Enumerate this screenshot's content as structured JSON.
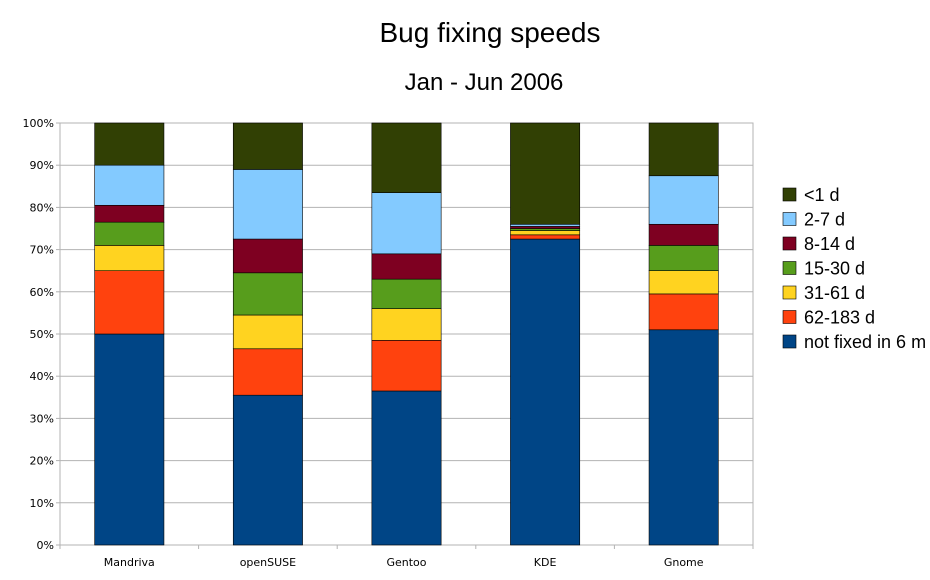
{
  "chart_data": {
    "type": "bar",
    "stacked": true,
    "title": "Bug fixing speeds",
    "subtitle": "Jan - Jun 2006",
    "categories": [
      "Mandriva",
      "openSUSE",
      "Gentoo",
      "KDE",
      "Gnome"
    ],
    "y_ticks": [
      "0%",
      "10%",
      "20%",
      "30%",
      "40%",
      "50%",
      "60%",
      "70%",
      "80%",
      "90%",
      "100%"
    ],
    "ylim": [
      0,
      100
    ],
    "grid": "horizontal",
    "legend_position": "right",
    "series": [
      {
        "name": "not fixed in 6 m",
        "color": "#004586",
        "values": [
          50.0,
          35.5,
          36.5,
          72.5,
          51.0
        ]
      },
      {
        "name": "62-183 d",
        "color": "#ff420e",
        "values": [
          15.0,
          11.0,
          12.0,
          1.0,
          8.5
        ]
      },
      {
        "name": "31-61 d",
        "color": "#ffd320",
        "values": [
          6.0,
          8.0,
          7.5,
          1.0,
          5.5
        ]
      },
      {
        "name": "15-30 d",
        "color": "#579d1c",
        "values": [
          5.5,
          10.0,
          7.0,
          0.5,
          6.0
        ]
      },
      {
        "name": "8-14 d",
        "color": "#7e0021",
        "values": [
          4.0,
          8.0,
          6.0,
          0.5,
          5.0
        ]
      },
      {
        "name": "2-7 d",
        "color": "#83caff",
        "values": [
          9.5,
          16.5,
          14.5,
          0.5,
          11.5
        ]
      },
      {
        "name": "<1 d",
        "color": "#314004",
        "values": [
          10.0,
          11.0,
          16.5,
          24.0,
          12.5
        ]
      }
    ]
  }
}
